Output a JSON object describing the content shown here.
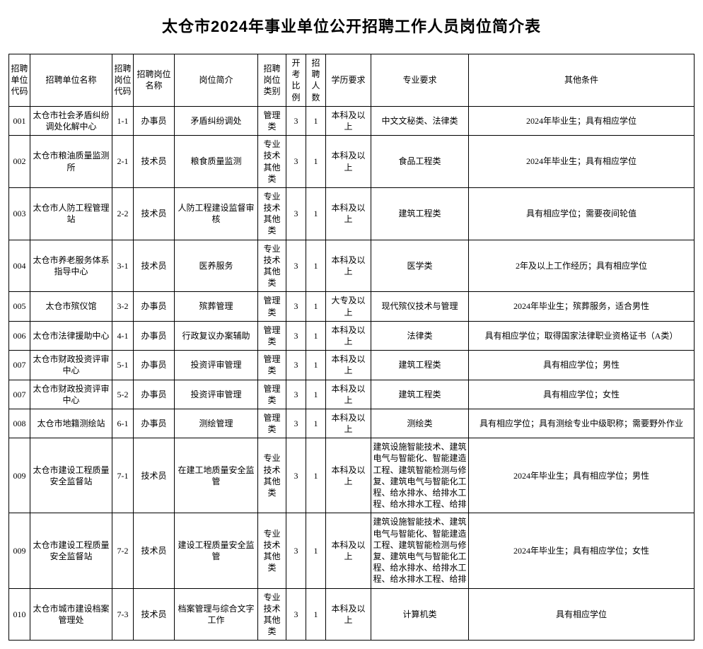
{
  "title": "太仓市2024年事业单位公开招聘工作人员岗位简介表",
  "columns": [
    "招聘单位代码",
    "招聘单位名称",
    "招聘岗位代码",
    "招聘岗位名称",
    "岗位简介",
    "招聘岗位类别",
    "开考比例",
    "招聘人数",
    "学历要求",
    "专业要求",
    "其他条件"
  ],
  "rows": [
    {
      "ucode": "001",
      "unit": "太仓市社会矛盾纠纷调处化解中心",
      "pcode": "1-1",
      "pname": "办事员",
      "brief": "矛盾纠纷调处",
      "cat": "管理类",
      "ratio": "3",
      "cnt": "1",
      "edu": "本科及以上",
      "major": "中文文秘类、法律类",
      "other": "2024年毕业生；具有相应学位"
    },
    {
      "ucode": "002",
      "unit": "太仓市粮油质量监测所",
      "pcode": "2-1",
      "pname": "技术员",
      "brief": "粮食质量监测",
      "cat": "专业技术其他类",
      "ratio": "3",
      "cnt": "1",
      "edu": "本科及以上",
      "major": "食品工程类",
      "other": "2024年毕业生；具有相应学位"
    },
    {
      "ucode": "003",
      "unit": "太仓市人防工程管理站",
      "pcode": "2-2",
      "pname": "技术员",
      "brief": "人防工程建设监督审核",
      "cat": "专业技术其他类",
      "ratio": "3",
      "cnt": "1",
      "edu": "本科及以上",
      "major": "建筑工程类",
      "other": "具有相应学位；需要夜间轮值"
    },
    {
      "ucode": "004",
      "unit": "太仓市养老服务体系指导中心",
      "pcode": "3-1",
      "pname": "技术员",
      "brief": "医养服务",
      "cat": "专业技术其他类",
      "ratio": "3",
      "cnt": "1",
      "edu": "本科及以上",
      "major": "医学类",
      "other": "2年及以上工作经历；具有相应学位"
    },
    {
      "ucode": "005",
      "unit": "太仓市殡仪馆",
      "pcode": "3-2",
      "pname": "办事员",
      "brief": "殡葬管理",
      "cat": "管理类",
      "ratio": "3",
      "cnt": "1",
      "edu": "大专及以上",
      "major": "现代殡仪技术与管理",
      "other": "2024年毕业生；殡葬服务，适合男性"
    },
    {
      "ucode": "006",
      "unit": "太仓市法律援助中心",
      "pcode": "4-1",
      "pname": "办事员",
      "brief": "行政复议办案辅助",
      "cat": "管理类",
      "ratio": "3",
      "cnt": "1",
      "edu": "本科及以上",
      "major": "法律类",
      "other": "具有相应学位；取得国家法律职业资格证书（A类）"
    },
    {
      "ucode": "007",
      "unit": "太仓市财政投资评审中心",
      "pcode": "5-1",
      "pname": "办事员",
      "brief": "投资评审管理",
      "cat": "管理类",
      "ratio": "3",
      "cnt": "1",
      "edu": "本科及以上",
      "major": "建筑工程类",
      "other": "具有相应学位；男性"
    },
    {
      "ucode": "007",
      "unit": "太仓市财政投资评审中心",
      "pcode": "5-2",
      "pname": "办事员",
      "brief": "投资评审管理",
      "cat": "管理类",
      "ratio": "3",
      "cnt": "1",
      "edu": "本科及以上",
      "major": "建筑工程类",
      "other": "具有相应学位；女性"
    },
    {
      "ucode": "008",
      "unit": "太仓市地籍测绘站",
      "pcode": "6-1",
      "pname": "办事员",
      "brief": "测绘管理",
      "cat": "管理类",
      "ratio": "3",
      "cnt": "1",
      "edu": "本科及以上",
      "major": "测绘类",
      "other": "具有相应学位；具有测绘专业中级职称；需要野外作业"
    },
    {
      "ucode": "009",
      "unit": "太仓市建设工程质量安全监督站",
      "pcode": "7-1",
      "pname": "技术员",
      "brief": "在建工地质量安全监管",
      "cat": "专业技术其他类",
      "ratio": "3",
      "cnt": "1",
      "edu": "本科及以上",
      "major": "建筑设施智能技术、建筑电气与智能化、智能建造工程、建筑智能检测与修复、建筑电气与智能化工程、给水排水、给排水工程、给水排水工程、给排",
      "other": "2024年毕业生；具有相应学位；男性"
    },
    {
      "ucode": "009",
      "unit": "太仓市建设工程质量安全监督站",
      "pcode": "7-2",
      "pname": "技术员",
      "brief": "建设工程质量安全监管",
      "cat": "专业技术其他类",
      "ratio": "3",
      "cnt": "1",
      "edu": "本科及以上",
      "major": "建筑设施智能技术、建筑电气与智能化、智能建造工程、建筑智能检测与修复、建筑电气与智能化工程、给水排水、给排水工程、给水排水工程、给排",
      "other": "2024年毕业生；具有相应学位；女性"
    },
    {
      "ucode": "010",
      "unit": "太仓市城市建设档案管理处",
      "pcode": "7-3",
      "pname": "技术员",
      "brief": "档案管理与综合文字工作",
      "cat": "专业技术其他类",
      "ratio": "3",
      "cnt": "1",
      "edu": "本科及以上",
      "major": "计算机类",
      "other": "具有相应学位"
    }
  ]
}
